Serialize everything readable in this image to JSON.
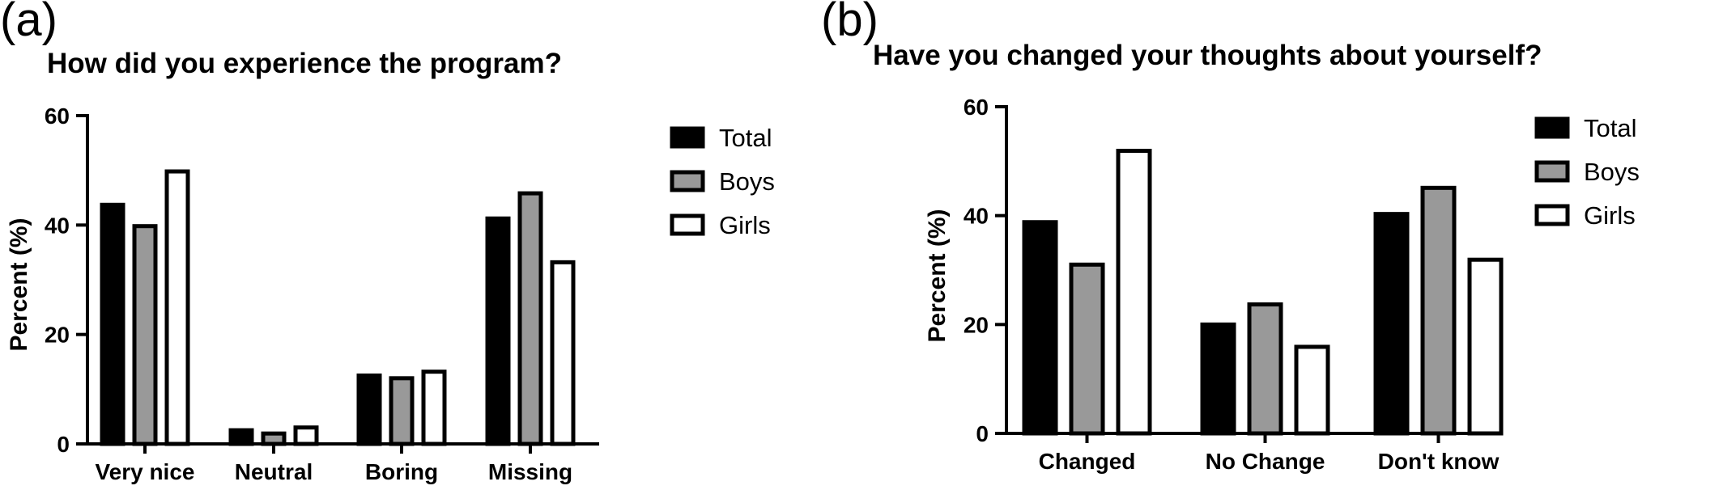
{
  "panels": [
    {
      "letter": "(a)",
      "colors": {
        "Total": "#000000",
        "Boys": "#999999",
        "Girls": "#ffffff"
      }
    },
    {
      "letter": "(b)",
      "colors": {
        "Total": "#000000",
        "Boys": "#999999",
        "Girls": "#ffffff"
      }
    }
  ],
  "chart_data": [
    {
      "type": "bar",
      "title": "How did you experience the program?",
      "xlabel": "",
      "ylabel": "Percent (%)",
      "ylim": [
        0,
        60
      ],
      "yticks": [
        0,
        20,
        40,
        60
      ],
      "grid": false,
      "legend_position": "right",
      "categories": [
        "Very nice",
        "Neutral",
        "Boring",
        "Missing"
      ],
      "series": [
        {
          "name": "Total",
          "values": [
            43.7,
            2.5,
            12.5,
            41.2
          ]
        },
        {
          "name": "Boys",
          "values": [
            39.8,
            1.9,
            12.0,
            45.8
          ]
        },
        {
          "name": "Girls",
          "values": [
            49.8,
            3.0,
            13.2,
            33.2
          ]
        }
      ]
    },
    {
      "type": "bar",
      "title": "Have you changed your thoughts about yourself?",
      "xlabel": "",
      "ylabel": "Percent (%)",
      "ylim": [
        0,
        60
      ],
      "yticks": [
        0,
        20,
        40,
        60
      ],
      "grid": false,
      "legend_position": "right",
      "categories": [
        "Changed",
        "No Change",
        "Don't know"
      ],
      "series": [
        {
          "name": "Total",
          "values": [
            38.8,
            20.0,
            40.3
          ]
        },
        {
          "name": "Boys",
          "values": [
            31.0,
            23.7,
            45.1
          ]
        },
        {
          "name": "Girls",
          "values": [
            51.9,
            15.9,
            31.9
          ]
        }
      ]
    }
  ]
}
